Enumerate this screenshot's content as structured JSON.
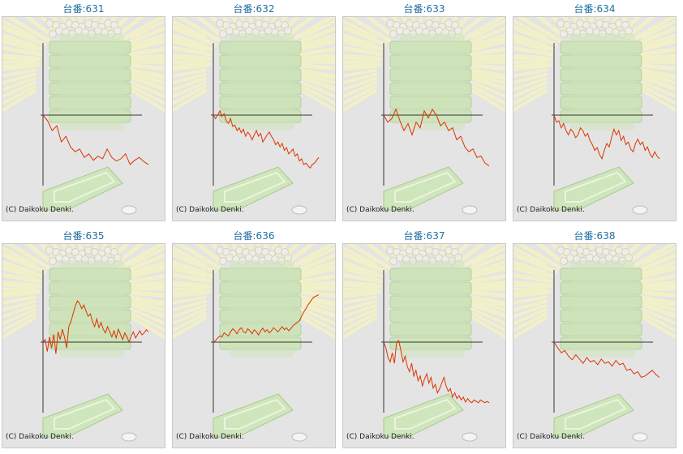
{
  "copyright": "(C) Daikoku Denki.",
  "colors": {
    "line": "#dd3300",
    "axis": "#333333",
    "panel_bg": "#e4e4e4",
    "title": "#1f6fa0"
  },
  "background_art": "pachinko-machine-illustration",
  "chart_data": [
    {
      "type": "line",
      "title": "台番:631",
      "ylim": [
        -100,
        100
      ],
      "x": [
        0,
        1,
        2,
        3,
        4,
        5,
        6,
        7,
        8,
        9,
        10,
        11,
        12,
        13,
        14,
        15,
        16,
        17,
        18,
        19,
        20,
        21,
        22,
        23
      ],
      "values": [
        0,
        -8,
        -22,
        -15,
        -38,
        -30,
        -45,
        -52,
        -48,
        -60,
        -55,
        -64,
        -58,
        -62,
        -48,
        -60,
        -65,
        -62,
        -55,
        -70,
        -64,
        -60,
        -66,
        -70
      ]
    },
    {
      "type": "line",
      "title": "台番:632",
      "ylim": [
        -100,
        100
      ],
      "x": [
        0,
        1,
        2,
        3,
        4,
        5,
        6,
        7,
        8,
        9,
        10,
        11,
        12,
        13,
        14,
        15,
        16,
        17,
        18,
        19,
        20,
        21,
        22,
        23,
        24,
        25,
        26,
        27,
        28,
        29,
        30,
        31,
        32,
        33,
        34,
        35,
        36,
        37,
        38,
        39,
        40,
        41,
        42,
        43,
        44,
        45,
        46,
        47,
        48,
        49
      ],
      "values": [
        0,
        -5,
        0,
        6,
        -2,
        2,
        -8,
        -12,
        -5,
        -16,
        -14,
        -22,
        -18,
        -25,
        -20,
        -30,
        -24,
        -28,
        -35,
        -28,
        -22,
        -30,
        -26,
        -38,
        -33,
        -28,
        -24,
        -30,
        -35,
        -42,
        -38,
        -45,
        -40,
        -50,
        -46,
        -55,
        -52,
        -48,
        -58,
        -55,
        -65,
        -62,
        -70,
        -68,
        -72,
        -75,
        -70,
        -68,
        -64,
        -60
      ]
    },
    {
      "type": "line",
      "title": "台番:633",
      "ylim": [
        -100,
        100
      ],
      "x": [
        0,
        1,
        2,
        3,
        4,
        5,
        6,
        7,
        8,
        9,
        10,
        11,
        12,
        13,
        14,
        15,
        16,
        17,
        18,
        19,
        20,
        21,
        22,
        23,
        24,
        25,
        26
      ],
      "values": [
        0,
        -10,
        -5,
        8,
        -8,
        -22,
        -12,
        -28,
        -10,
        -18,
        6,
        -4,
        8,
        0,
        -15,
        -10,
        -22,
        -18,
        -35,
        -30,
        -45,
        -52,
        -48,
        -60,
        -58,
        -68,
        -72
      ]
    },
    {
      "type": "line",
      "title": "台番:634",
      "ylim": [
        -100,
        100
      ],
      "x": [
        0,
        1,
        2,
        3,
        4,
        5,
        6,
        7,
        8,
        9,
        10,
        11,
        12,
        13,
        14,
        15,
        16,
        17,
        18,
        19,
        20,
        21,
        22,
        23,
        24,
        25,
        26,
        27,
        28,
        29,
        30,
        31,
        32,
        33,
        34,
        35,
        36,
        37,
        38,
        39,
        40,
        41,
        42,
        43,
        44
      ],
      "values": [
        0,
        -10,
        -8,
        -18,
        -12,
        -22,
        -28,
        -20,
        -24,
        -32,
        -28,
        -18,
        -22,
        -30,
        -26,
        -36,
        -42,
        -50,
        -46,
        -56,
        -62,
        -50,
        -40,
        -45,
        -32,
        -20,
        -28,
        -22,
        -36,
        -30,
        -42,
        -38,
        -48,
        -52,
        -40,
        -34,
        -42,
        -38,
        -50,
        -45,
        -55,
        -60,
        -52,
        -58,
        -62
      ]
    },
    {
      "type": "line",
      "title": "台番:635",
      "ylim": [
        -60,
        140
      ],
      "x": [
        0,
        1,
        2,
        3,
        4,
        5,
        6,
        7,
        8,
        9,
        10,
        11,
        12,
        13,
        14,
        15,
        16,
        17,
        18,
        19,
        20,
        21,
        22,
        23,
        24,
        25,
        26,
        27,
        28,
        29,
        30,
        31,
        32,
        33,
        34,
        35,
        36,
        37,
        38,
        39,
        40,
        41,
        42,
        43,
        44,
        45,
        46,
        47,
        48,
        49
      ],
      "values": [
        0,
        5,
        -8,
        10,
        -5,
        15,
        -10,
        20,
        5,
        25,
        10,
        -5,
        30,
        40,
        55,
        70,
        80,
        75,
        65,
        72,
        60,
        50,
        55,
        40,
        30,
        45,
        28,
        38,
        25,
        18,
        30,
        20,
        10,
        22,
        8,
        25,
        15,
        5,
        18,
        10,
        0,
        12,
        20,
        8,
        15,
        22,
        14,
        18,
        24,
        20
      ]
    },
    {
      "type": "line",
      "title": "台番:636",
      "ylim": [
        -60,
        140
      ],
      "x": [
        0,
        1,
        2,
        3,
        4,
        5,
        6,
        7,
        8,
        9,
        10,
        11,
        12,
        13,
        14,
        15,
        16,
        17,
        18,
        19,
        20,
        21,
        22,
        23,
        24,
        25,
        26,
        27,
        28,
        29,
        30,
        31,
        32,
        33,
        34,
        35,
        36,
        37,
        38,
        39,
        40,
        41,
        42,
        43,
        44,
        45,
        46,
        47,
        48,
        49
      ],
      "values": [
        0,
        3,
        8,
        12,
        10,
        18,
        15,
        12,
        20,
        26,
        22,
        16,
        24,
        28,
        20,
        18,
        26,
        22,
        16,
        24,
        20,
        14,
        22,
        27,
        20,
        24,
        18,
        22,
        28,
        24,
        20,
        25,
        30,
        24,
        28,
        22,
        26,
        32,
        35,
        38,
        42,
        50,
        58,
        65,
        72,
        78,
        84,
        88,
        90,
        92
      ]
    },
    {
      "type": "line",
      "title": "台番:637",
      "ylim": [
        -100,
        100
      ],
      "x": [
        0,
        1,
        2,
        3,
        4,
        5,
        6,
        7,
        8,
        9,
        10,
        11,
        12,
        13,
        14,
        15,
        16,
        17,
        18,
        19,
        20,
        21,
        22,
        23,
        24,
        25,
        26,
        27,
        28,
        29,
        30,
        31,
        32,
        33,
        34,
        35,
        36,
        37,
        38,
        39,
        40,
        41,
        42,
        43,
        44,
        45,
        46,
        47,
        48,
        49
      ],
      "values": [
        0,
        -8,
        -22,
        -28,
        -15,
        -30,
        0,
        2,
        -12,
        -28,
        -20,
        -35,
        -42,
        -30,
        -48,
        -40,
        -55,
        -48,
        -62,
        -52,
        -45,
        -58,
        -50,
        -65,
        -60,
        -72,
        -66,
        -58,
        -50,
        -62,
        -70,
        -66,
        -78,
        -72,
        -80,
        -76,
        -82,
        -78,
        -85,
        -80,
        -84,
        -86,
        -82,
        -84,
        -86,
        -82,
        -84,
        -86,
        -84,
        -86
      ]
    },
    {
      "type": "line",
      "title": "台番:638",
      "ylim": [
        -100,
        100
      ],
      "x": [
        0,
        1,
        2,
        3,
        4,
        5,
        6,
        7,
        8,
        9,
        10,
        11,
        12,
        13,
        14,
        15,
        16,
        17,
        18,
        19,
        20,
        21,
        22,
        23,
        24,
        25,
        26,
        27,
        28,
        29
      ],
      "values": [
        0,
        -8,
        -15,
        -12,
        -20,
        -25,
        -18,
        -24,
        -30,
        -22,
        -28,
        -26,
        -32,
        -24,
        -30,
        -28,
        -34,
        -26,
        -32,
        -30,
        -40,
        -38,
        -45,
        -42,
        -50,
        -48,
        -44,
        -40,
        -46,
        -50
      ]
    }
  ]
}
